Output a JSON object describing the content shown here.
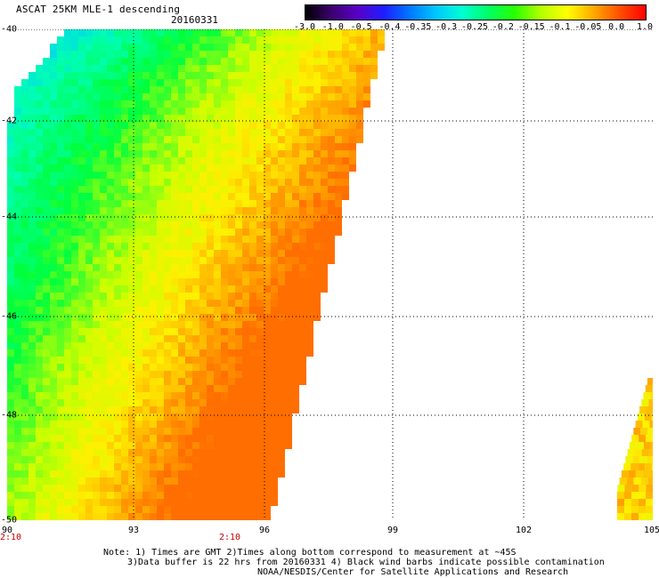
{
  "header": {
    "title": "ASCAT 25KM MLE-1 descending",
    "date": "20160331"
  },
  "colorbar": {
    "labels": [
      "-3.0",
      "-1.0",
      "-0.5",
      "-0.4",
      "-0.35",
      "-0.3",
      "-0.25",
      "-0.2",
      "-0.15",
      "-0.1",
      "-0.05",
      "0.0",
      "1.0"
    ],
    "colors": [
      "#000000",
      "#3c0070",
      "#5a00c8",
      "#1e1eff",
      "#0078ff",
      "#00c8ff",
      "#00ffd2",
      "#00ff64",
      "#28ff00",
      "#b4ff00",
      "#ffff00",
      "#ffaa00",
      "#ff5000",
      "#ff0000"
    ]
  },
  "axes": {
    "lat_labels": [
      "-40",
      "-42",
      "-44",
      "-46",
      "-48",
      "-50"
    ],
    "lon_labels": [
      "90",
      "93",
      "96",
      "99",
      "102",
      "105"
    ],
    "time_labels": [
      "2:10",
      "2:10"
    ]
  },
  "notes": [
    "Note: 1) Times are GMT 2)Times along bottom correspond to measurement at ~45S",
    "3)Data buffer is 22 hrs from 20160331 4) Black wind barbs indicate possible contamination",
    "NOAA/NESDIS/Center for Satellite Applications and Research"
  ]
}
